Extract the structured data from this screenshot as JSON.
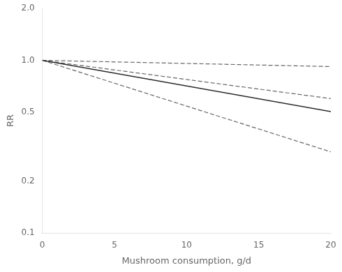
{
  "chart_data": {
    "type": "line",
    "xlabel": "Mushroom consumption, g/d",
    "ylabel": "RR",
    "x": [
      0,
      20
    ],
    "series": [
      {
        "color": "#2b2b2b",
        "line_style": "solid",
        "values": [
          1.0,
          0.505
        ]
      },
      {
        "color": "#666666",
        "line_style": "dashed",
        "values": [
          1.0,
          0.92
        ]
      },
      {
        "color": "#666666",
        "line_style": "dashed",
        "values": [
          1.0,
          0.6
        ]
      },
      {
        "color": "#666666",
        "line_style": "dashed",
        "values": [
          1.0,
          0.295
        ]
      }
    ],
    "xlim": [
      0,
      20
    ],
    "xticks": [
      0,
      5,
      10,
      15,
      20
    ],
    "ylim": [
      0.1,
      2.0
    ],
    "yticks": [
      0.1,
      0.2,
      0.5,
      {
        "value": 1.0,
        "label": "1.0"
      },
      {
        "value": 2.0,
        "label": "2.0"
      }
    ],
    "log": "y",
    "grid": false
  }
}
